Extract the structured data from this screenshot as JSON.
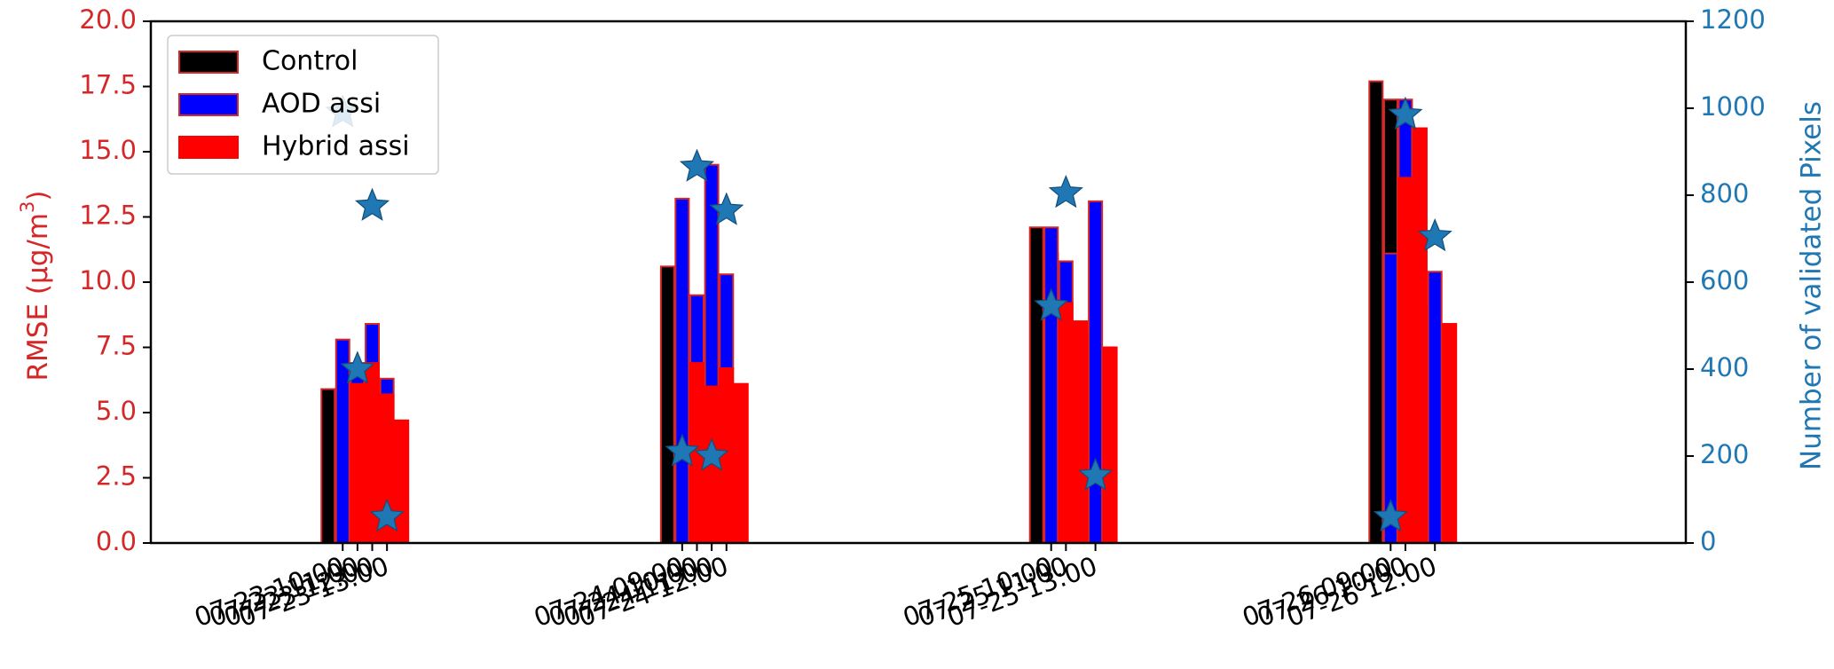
{
  "chart_data": {
    "type": "bar",
    "title": "",
    "categories": [
      "07-23 10:00",
      "07-23 11:00",
      "07-23 12:00",
      "07-23 13:00",
      "07-24 09:00",
      "07-24 10:00",
      "07-24 11:00",
      "07-24 12:00",
      "07-25 10:00",
      "07-25 11:00",
      "07-25 13:00",
      "07-26 09:00",
      "07-26 10:00",
      "07-26 12:00"
    ],
    "x_hours": [
      10,
      11,
      12,
      13,
      33,
      34,
      35,
      36,
      58,
      59,
      61,
      81,
      82,
      84
    ],
    "xlim_hours": [
      -3,
      101
    ],
    "series": [
      {
        "name": "Control",
        "color": "#000000",
        "edge": "#d62728",
        "values": [
          5.9,
          6.0,
          4.4,
          5.3,
          10.6,
          7.0,
          9.3,
          7.0,
          12.1,
          11.1,
          8.0,
          17.7,
          17.0,
          9.0
        ]
      },
      {
        "name": "AOD assi",
        "color": "#0000ff",
        "edge": "#d62728",
        "values": [
          7.8,
          6.9,
          8.4,
          6.3,
          13.2,
          9.5,
          14.5,
          10.3,
          12.1,
          10.8,
          13.1,
          11.1,
          17.0,
          10.4
        ]
      },
      {
        "name": "Hybrid assi",
        "color": "#ff0000",
        "edge": "#ff0000",
        "values": [
          6.1,
          6.9,
          5.7,
          4.7,
          6.9,
          6.0,
          6.7,
          6.1,
          9.2,
          8.5,
          7.5,
          14.0,
          15.9,
          8.4
        ]
      }
    ],
    "secondary_series": {
      "name": "Number of validated Pixels",
      "marker": "star",
      "color": "#1f77b4",
      "values": [
        990,
        400,
        775,
        60,
        210,
        865,
        200,
        765,
        545,
        805,
        155,
        60,
        985,
        705
      ]
    },
    "ylabel_left": "RMSE (μg/m³)",
    "ylabel_left_main": "RMSE (μg/m",
    "ylabel_left_sup": "3",
    "ylabel_left_close": ")",
    "ylabel_right": "Number of validated Pixels",
    "ylim_left": [
      0,
      20
    ],
    "ylim_right": [
      0,
      1200
    ],
    "yticks_left": [
      "0.0",
      "2.5",
      "5.0",
      "7.5",
      "10.0",
      "12.5",
      "15.0",
      "17.5",
      "20.0"
    ],
    "yticks_right": [
      "0",
      "200",
      "400",
      "600",
      "800",
      "1000",
      "1200"
    ],
    "left_color": "#d62728",
    "right_color": "#1f77b4",
    "legend_position": "upper-left",
    "grid": false
  }
}
